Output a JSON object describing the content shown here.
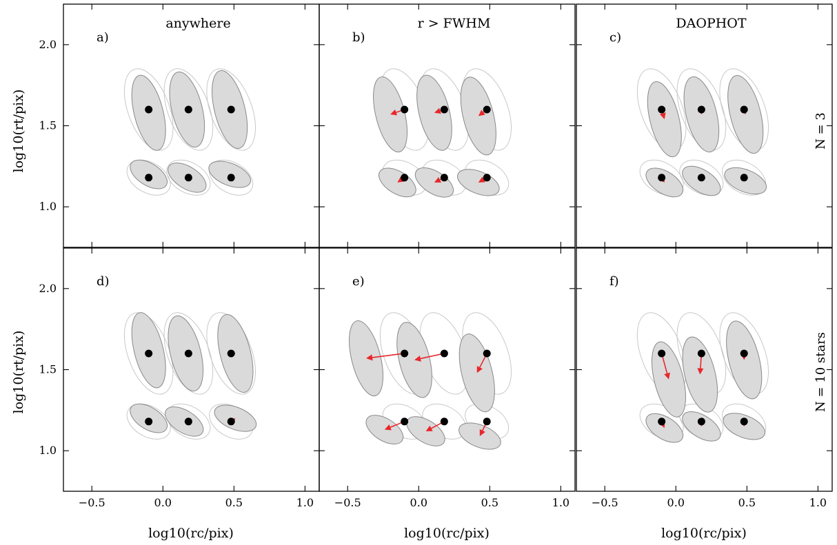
{
  "figure": {
    "panels": [
      {
        "id": "a",
        "label": "a)",
        "title": "anywhere",
        "row": 0,
        "col": 0
      },
      {
        "id": "b",
        "label": "b)",
        "title": "r  > FWHM",
        "row": 0,
        "col": 1
      },
      {
        "id": "c",
        "label": "c)",
        "title": "DAOPHOT",
        "row": 0,
        "col": 2
      },
      {
        "id": "d",
        "label": "d)",
        "title": "",
        "row": 1,
        "col": 0
      },
      {
        "id": "e",
        "label": "e)",
        "title": "",
        "row": 1,
        "col": 1
      },
      {
        "id": "f",
        "label": "f)",
        "title": "",
        "row": 1,
        "col": 2
      }
    ],
    "row_labels": [
      "N = 3",
      "N = 10  stars"
    ],
    "xlabel": "log10(rc/pix)",
    "ylabel": "log10(rt/pix)",
    "xticks": [
      "−0.5",
      "0.0",
      "0.5",
      "1.0"
    ],
    "yticks": [
      "1.0",
      "1.5",
      "2.0"
    ]
  },
  "chart_data": {
    "type": "scatter",
    "description_series": [
      "true parameters",
      "estimated mean",
      "offset arrow"
    ],
    "xlim": [
      -0.7,
      1.1
    ],
    "ylim": [
      0.75,
      2.25
    ],
    "xtick_values": [
      -0.5,
      0.0,
      0.5,
      1.0
    ],
    "ytick_values": [
      1.0,
      1.5,
      2.0
    ],
    "true_points": [
      [
        -0.1,
        1.6
      ],
      [
        0.18,
        1.6
      ],
      [
        0.48,
        1.6
      ],
      [
        -0.1,
        1.18
      ],
      [
        0.18,
        1.18
      ],
      [
        0.48,
        1.18
      ]
    ],
    "panels": [
      {
        "id": "a",
        "estimates": [
          [
            -0.1,
            1.58
          ],
          [
            0.17,
            1.6
          ],
          [
            0.47,
            1.6
          ],
          [
            -0.1,
            1.2
          ],
          [
            0.17,
            1.18
          ],
          [
            0.47,
            1.2
          ]
        ]
      },
      {
        "id": "b",
        "estimates": [
          [
            -0.2,
            1.57
          ],
          [
            0.11,
            1.58
          ],
          [
            0.42,
            1.56
          ],
          [
            -0.15,
            1.15
          ],
          [
            0.11,
            1.15
          ],
          [
            0.42,
            1.15
          ]
        ]
      },
      {
        "id": "c",
        "estimates": [
          [
            -0.08,
            1.54
          ],
          [
            0.18,
            1.57
          ],
          [
            0.49,
            1.57
          ],
          [
            -0.08,
            1.15
          ],
          [
            0.18,
            1.16
          ],
          [
            0.49,
            1.16
          ]
        ]
      },
      {
        "id": "d",
        "estimates": [
          [
            -0.1,
            1.62
          ],
          [
            0.16,
            1.6
          ],
          [
            0.51,
            1.6
          ],
          [
            -0.1,
            1.2
          ],
          [
            0.15,
            1.18
          ],
          [
            0.51,
            1.2
          ]
        ]
      },
      {
        "id": "e",
        "estimates": [
          [
            -0.37,
            1.57
          ],
          [
            -0.03,
            1.56
          ],
          [
            0.41,
            1.48
          ],
          [
            -0.24,
            1.13
          ],
          [
            0.05,
            1.12
          ],
          [
            0.43,
            1.09
          ]
        ]
      },
      {
        "id": "f",
        "estimates": [
          [
            -0.05,
            1.44
          ],
          [
            0.17,
            1.47
          ],
          [
            0.48,
            1.56
          ],
          [
            -0.08,
            1.14
          ],
          [
            0.18,
            1.15
          ],
          [
            0.48,
            1.15
          ]
        ]
      }
    ]
  }
}
